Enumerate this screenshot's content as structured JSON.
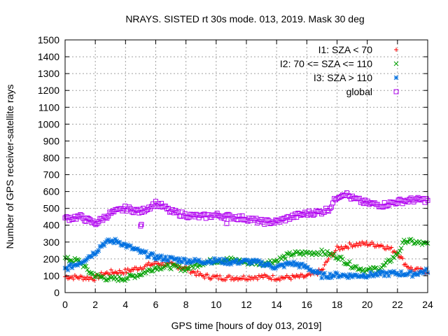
{
  "chart_data": {
    "type": "scatter",
    "title": "NRAYS. SISTED rt 30s mode. 013, 2019. Mask 30 deg",
    "xlabel": "GPS time [hours of doy 013, 2019]",
    "ylabel": "Number of GPS receiver-satellite rays",
    "xlim": [
      0,
      24
    ],
    "ylim": [
      0,
      1500
    ],
    "xticks": [
      "0",
      "2",
      "4",
      "6",
      "8",
      "10",
      "12",
      "14",
      "16",
      "18",
      "20",
      "22",
      "24"
    ],
    "yticks": [
      "0",
      "100",
      "200",
      "300",
      "400",
      "500",
      "600",
      "700",
      "800",
      "900",
      "1000",
      "1100",
      "1200",
      "1300",
      "1400",
      "1500"
    ],
    "grid": true,
    "legend_position": "top-right",
    "series": [
      {
        "name": "I1: SZA < 70",
        "marker": "+",
        "color": "#ff0000",
        "x": [
          0,
          1,
          2,
          2.5,
          3,
          4,
          5,
          6,
          7,
          8,
          9,
          10,
          11,
          12,
          13,
          14,
          15,
          16,
          17,
          17.5,
          18,
          19,
          20,
          21,
          22,
          22.5,
          23,
          24
        ],
        "y": [
          95,
          90,
          85,
          110,
          120,
          125,
          150,
          175,
          165,
          145,
          100,
          90,
          88,
          90,
          95,
          88,
          90,
          95,
          130,
          210,
          260,
          285,
          290,
          280,
          240,
          170,
          135,
          125
        ]
      },
      {
        "name": "I2: 70 <= SZA <= 110",
        "marker": "x",
        "color": "#00a000",
        "x": [
          0,
          1,
          1.5,
          2,
          3,
          4,
          5,
          6,
          7,
          8,
          9,
          10,
          11,
          12,
          13,
          14,
          15,
          16,
          17,
          18,
          19,
          20,
          21,
          22,
          22.5,
          23,
          24
        ],
        "y": [
          200,
          185,
          130,
          100,
          80,
          85,
          110,
          150,
          155,
          140,
          175,
          190,
          195,
          180,
          175,
          190,
          230,
          235,
          240,
          215,
          160,
          130,
          150,
          230,
          310,
          300,
          285
        ]
      },
      {
        "name": "I3: SZA > 110",
        "marker": "*",
        "color": "#0070e0",
        "x": [
          0,
          1,
          2,
          2.5,
          3,
          3.5,
          4,
          5,
          6,
          7,
          8,
          9,
          10,
          11,
          12,
          13,
          14,
          15,
          16,
          17,
          18,
          19,
          20,
          21,
          22,
          23,
          24
        ],
        "y": [
          140,
          180,
          240,
          290,
          305,
          305,
          280,
          240,
          210,
          200,
          190,
          185,
          190,
          180,
          185,
          175,
          150,
          175,
          150,
          100,
          105,
          100,
          105,
          110,
          115,
          110,
          130
        ]
      },
      {
        "name": "global",
        "marker": "square",
        "color": "#b000f0",
        "x": [
          0,
          1,
          2,
          3,
          4,
          5,
          6,
          6.5,
          7,
          8,
          9,
          10,
          11,
          12,
          13,
          14,
          15,
          16,
          17,
          17.5,
          18,
          18.5,
          19,
          20,
          21,
          22,
          23,
          24
        ],
        "y": [
          440,
          450,
          410,
          470,
          500,
          480,
          530,
          510,
          480,
          460,
          450,
          460,
          450,
          440,
          420,
          420,
          450,
          470,
          480,
          500,
          570,
          590,
          560,
          530,
          520,
          540,
          550,
          550
        ]
      }
    ],
    "outliers": [
      {
        "series": "global",
        "x": 5.0,
        "y": 395
      },
      {
        "series": "global",
        "x": 5.05,
        "y": 405
      },
      {
        "series": "global",
        "x": 10.7,
        "y": 410
      }
    ]
  }
}
